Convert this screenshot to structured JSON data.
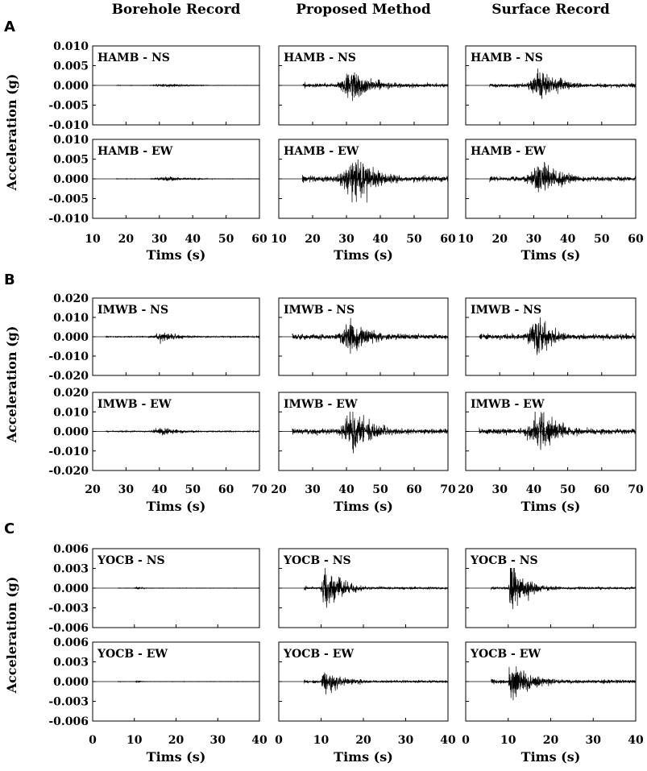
{
  "column_titles": [
    "Borehole Record",
    "Proposed Method",
    "Surface Record"
  ],
  "chart_data": [
    {
      "panel": "A",
      "type": "line",
      "ylabel": "Acceleration (g)",
      "xlabel": "Tims (s)",
      "xlim": [
        10,
        60
      ],
      "xticks": [
        10,
        20,
        30,
        40,
        50,
        60
      ],
      "ylim": [
        -0.01,
        0.01
      ],
      "yticks": [
        "0.010",
        "0.005",
        "0.000",
        "-0.005",
        "-0.010"
      ],
      "rows": [
        {
          "station": "HAMB - NS",
          "series": [
            {
              "column": "Borehole Record",
              "start": 17,
              "p_time": 27,
              "peak_time": 32,
              "peak": 0.0006,
              "noise": 5e-05,
              "decay": 6
            },
            {
              "column": "Proposed Method",
              "start": 17,
              "p_time": 27,
              "peak_time": 31,
              "peak": 0.0045,
              "noise": 0.0005,
              "decay": 7
            },
            {
              "column": "Surface Record",
              "start": 17,
              "p_time": 27,
              "peak_time": 32,
              "peak": 0.0045,
              "noise": 0.0005,
              "decay": 6
            }
          ]
        },
        {
          "station": "HAMB - EW",
          "series": [
            {
              "column": "Borehole Record",
              "start": 17,
              "p_time": 27,
              "peak_time": 32,
              "peak": 0.0007,
              "noise": 5e-05,
              "decay": 6
            },
            {
              "column": "Proposed Method",
              "start": 17,
              "p_time": 27,
              "peak_time": 32,
              "peak": 0.0068,
              "noise": 0.0008,
              "decay": 7
            },
            {
              "column": "Surface Record",
              "start": 17,
              "p_time": 27,
              "peak_time": 32,
              "peak": 0.0055,
              "noise": 0.0006,
              "decay": 6
            }
          ]
        }
      ]
    },
    {
      "panel": "B",
      "type": "line",
      "ylabel": "Acceleration (g)",
      "xlabel": "Tims (s)",
      "xlim": [
        20,
        70
      ],
      "xticks": [
        20,
        30,
        40,
        50,
        60,
        70
      ],
      "ylim": [
        -0.02,
        0.02
      ],
      "yticks": [
        "0.020",
        "0.010",
        "0.000",
        "-0.010",
        "-0.020"
      ],
      "rows": [
        {
          "station": "IMWB - NS",
          "series": [
            {
              "column": "Borehole Record",
              "start": 24,
              "p_time": 37,
              "peak_time": 41,
              "peak": 0.003,
              "noise": 0.0003,
              "decay": 5
            },
            {
              "column": "Proposed Method",
              "start": 24,
              "p_time": 37,
              "peak_time": 41,
              "peak": 0.0115,
              "noise": 0.0015,
              "decay": 6
            },
            {
              "column": "Surface Record",
              "start": 24,
              "p_time": 37,
              "peak_time": 41,
              "peak": 0.0115,
              "noise": 0.0015,
              "decay": 5
            }
          ]
        },
        {
          "station": "IMWB - EW",
          "series": [
            {
              "column": "Borehole Record",
              "start": 24,
              "p_time": 37,
              "peak_time": 41,
              "peak": 0.003,
              "noise": 0.0003,
              "decay": 5
            },
            {
              "column": "Proposed Method",
              "start": 24,
              "p_time": 37,
              "peak_time": 42,
              "peak": 0.012,
              "noise": 0.0015,
              "decay": 6
            },
            {
              "column": "Surface Record",
              "start": 24,
              "p_time": 37,
              "peak_time": 42,
              "peak": 0.0125,
              "noise": 0.0015,
              "decay": 6
            }
          ]
        }
      ]
    },
    {
      "panel": "C",
      "type": "line",
      "ylabel": "Acceleration (g)",
      "xlabel": "Tims (s)",
      "xlim": [
        0,
        40
      ],
      "xticks": [
        0,
        10,
        20,
        30,
        40
      ],
      "ylim": [
        -0.006,
        0.006
      ],
      "yticks": [
        "0.006",
        "0.003",
        "0.000",
        "-0.003",
        "-0.006"
      ],
      "rows": [
        {
          "station": "YOCB - NS",
          "series": [
            {
              "column": "Borehole Record",
              "start": 6,
              "p_time": 10,
              "peak_time": 10.5,
              "peak": 0.0003,
              "noise": 3e-05,
              "decay": 1.5
            },
            {
              "column": "Proposed Method",
              "start": 6,
              "p_time": 10,
              "peak_time": 10.5,
              "peak": 0.004,
              "noise": 0.0002,
              "decay": 4
            },
            {
              "column": "Surface Record",
              "start": 6,
              "p_time": 10,
              "peak_time": 10.5,
              "peak": 0.0042,
              "noise": 0.0002,
              "decay": 4
            }
          ]
        },
        {
          "station": "YOCB - EW",
          "series": [
            {
              "column": "Borehole Record",
              "start": 6,
              "p_time": 10,
              "peak_time": 10.5,
              "peak": 0.0002,
              "noise": 3e-05,
              "decay": 1.5
            },
            {
              "column": "Proposed Method",
              "start": 6,
              "p_time": 10,
              "peak_time": 10.3,
              "peak": 0.0022,
              "noise": 0.0002,
              "decay": 5
            },
            {
              "column": "Surface Record",
              "start": 6,
              "p_time": 10,
              "peak_time": 10.5,
              "peak": 0.0035,
              "noise": 0.0003,
              "decay": 5
            }
          ]
        }
      ]
    }
  ]
}
